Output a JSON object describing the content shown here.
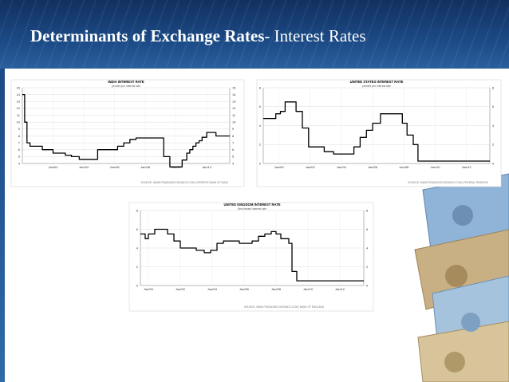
{
  "slide": {
    "title_bold": "Determinants of Exchange Rates",
    "title_rest": "- Interest Rates"
  },
  "chart_data": [
    {
      "type": "line",
      "title": "INDIA INTEREST RATE",
      "subtitle": "percent per interest rate",
      "ylim": [
        4,
        15
      ],
      "yticks": [
        4,
        5,
        6,
        7,
        8,
        9,
        10,
        11,
        12,
        13,
        14,
        15
      ],
      "xticks": [
        "Jan/02",
        "Jan/04",
        "Jan/06",
        "Jan/08",
        "Jan/10",
        "Jan/12"
      ],
      "xtick_values": [
        2002,
        2004,
        2006,
        2008,
        2010,
        2012
      ],
      "xlim": [
        2000.0,
        2013.5
      ],
      "source": "SOURCE: WWW.TRADINGECONOMICS.COM | RESERVE BANK OF INDIA",
      "grid": true,
      "legend": "none",
      "color": "#000000",
      "x": [
        2000.0,
        2000.15,
        2000.3,
        2000.5,
        2001.0,
        2001.3,
        2001.6,
        2002.0,
        2002.3,
        2002.8,
        2003.2,
        2003.7,
        2004.2,
        2004.6,
        2004.9,
        2005.3,
        2005.7,
        2006.2,
        2006.6,
        2007.0,
        2007.4,
        2007.8,
        2008.2,
        2008.6,
        2008.9,
        2009.2,
        2009.6,
        2010.1,
        2010.4,
        2010.7,
        2010.9,
        2011.1,
        2011.3,
        2011.5,
        2011.7,
        2012.0,
        2012.3,
        2012.6,
        2013.0,
        2013.5
      ],
      "y": [
        14,
        10,
        7,
        6.5,
        6.5,
        6,
        6,
        5.5,
        5.5,
        5.2,
        5,
        4.6,
        4.6,
        4.6,
        6,
        6,
        6,
        6.5,
        7,
        7.5,
        7.7,
        7.7,
        7.7,
        7.7,
        7.7,
        5,
        3.5,
        3.5,
        4.5,
        5.5,
        6,
        6.5,
        7,
        7.3,
        7.8,
        8.5,
        8.5,
        8,
        8,
        8
      ]
    },
    {
      "type": "line",
      "title": "UNITED STATES INTEREST RATE",
      "subtitle": "percent per interest rate",
      "ylim": [
        0,
        8
      ],
      "yticks": [
        0,
        2,
        4,
        6,
        8
      ],
      "xticks": [
        "Jan/00",
        "Jan/02",
        "Jan/04",
        "Jan/06",
        "Jan/08",
        "Jan/10",
        "Jan/12"
      ],
      "xtick_values": [
        2000,
        2002,
        2004,
        2006,
        2008,
        2010,
        2012
      ],
      "xlim": [
        1999.0,
        2013.5
      ],
      "source": "SOURCE: WWW.TRADINGECONOMICS.COM | FEDERAL RESERVE",
      "grid": true,
      "legend": "none",
      "color": "#000000",
      "x": [
        1999.0,
        1999.4,
        1999.8,
        2000.1,
        2000.4,
        2000.9,
        2001.1,
        2001.5,
        2001.9,
        2002.3,
        2002.9,
        2003.5,
        2004.4,
        2004.8,
        2005.2,
        2005.6,
        2006.0,
        2006.5,
        2007.0,
        2007.6,
        2007.9,
        2008.2,
        2008.6,
        2008.9,
        2009.3,
        2010.0,
        2011.0,
        2012.0,
        2013.0,
        2013.5
      ],
      "y": [
        4.75,
        4.75,
        5.25,
        5.5,
        6.5,
        6.5,
        5.5,
        3.75,
        1.75,
        1.75,
        1.25,
        1,
        1,
        1.75,
        2.75,
        3.5,
        4.25,
        5.25,
        5.25,
        5.25,
        4.25,
        3,
        2,
        0.25,
        0.25,
        0.25,
        0.25,
        0.25,
        0.25,
        0.25
      ]
    },
    {
      "type": "line",
      "title": "UNITED KINGDOM INTEREST RATE",
      "subtitle": "Benchmark interest rate",
      "ylim": [
        0,
        8
      ],
      "yticks": [
        0,
        2,
        4,
        6,
        8
      ],
      "xticks": [
        "Jan/00",
        "Jan/02",
        "Jan/04",
        "Jan/06",
        "Jan/08",
        "Jan/10",
        "Jan/12"
      ],
      "xtick_values": [
        2000,
        2002,
        2004,
        2006,
        2008,
        2010,
        2012
      ],
      "xlim": [
        1999.5,
        2013.5
      ],
      "source": "SOURCE: WWW.TRADINGECONOMICS.COM | BANK OF ENGLAND",
      "grid": true,
      "legend": "none",
      "color": "#000000",
      "x": [
        1999.5,
        1999.8,
        2000.0,
        2000.4,
        2000.8,
        2001.2,
        2001.6,
        2002.0,
        2002.6,
        2003.0,
        2003.5,
        2003.9,
        2004.3,
        2004.7,
        2005.2,
        2005.7,
        2006.1,
        2006.5,
        2006.9,
        2007.3,
        2007.7,
        2008.0,
        2008.3,
        2008.6,
        2008.8,
        2009.0,
        2009.3,
        2010.0,
        2011.0,
        2012.0,
        2013.5
      ],
      "y": [
        5.5,
        5,
        5.5,
        6,
        6,
        5.5,
        4.75,
        4,
        4,
        3.75,
        3.5,
        3.75,
        4.5,
        4.75,
        4.75,
        4.5,
        4.5,
        4.75,
        5.25,
        5.5,
        5.75,
        5.5,
        5,
        5,
        4.5,
        1.5,
        0.5,
        0.5,
        0.5,
        0.5,
        0.5
      ]
    }
  ],
  "decor": {
    "background_color": "#ffffff",
    "header_color": "#1b4a86",
    "note_colors": [
      "#7fa9cf",
      "#c6ab7c",
      "#9cbad6",
      "#d3bf92"
    ]
  }
}
